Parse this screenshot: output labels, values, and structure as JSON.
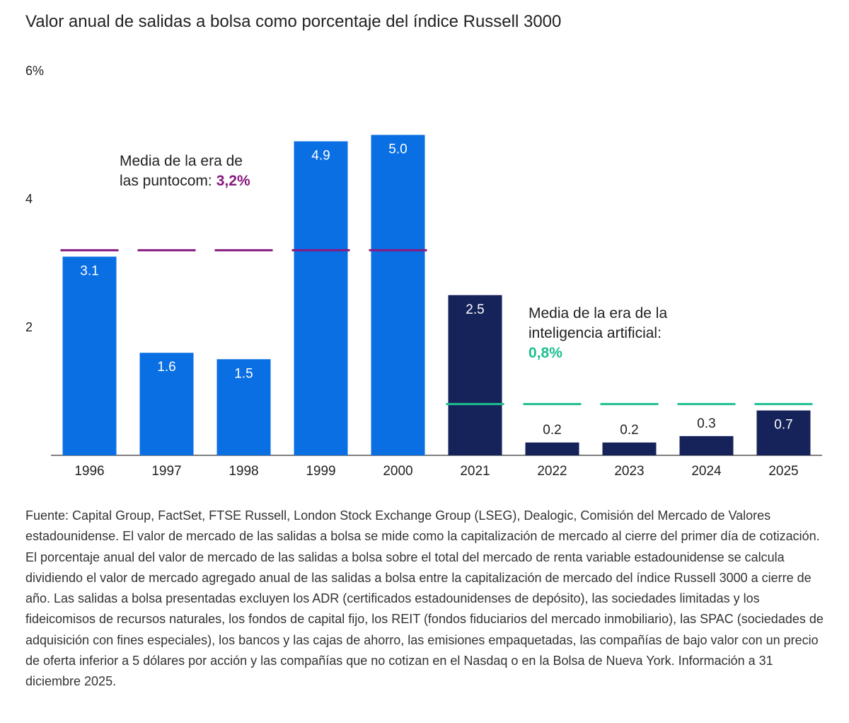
{
  "chart_data": {
    "type": "bar",
    "title": "Valor anual de salidas a bolsa como porcentaje del índice Russell 3000",
    "ylim": [
      0,
      6
    ],
    "yticks": [
      2,
      4,
      {
        "value": 6,
        "label": "6%"
      }
    ],
    "eras": [
      {
        "categories": [
          "1996",
          "1997",
          "1998",
          "1999",
          "2000"
        ],
        "values": [
          3.1,
          1.6,
          1.5,
          4.9,
          5.0
        ],
        "value_labels": [
          "3.1",
          "1.6",
          "1.5",
          "4.9",
          "5.0"
        ],
        "color": "#0a6fe3",
        "note": [
          "Media de la era de",
          "las puntocom:"
        ],
        "mean": 3.2,
        "mean_label": "3,2%",
        "mean_color": "#87197f"
      },
      {
        "categories": [
          "2021",
          "2022",
          "2023",
          "2024",
          "2025"
        ],
        "values": [
          2.5,
          0.2,
          0.2,
          0.3,
          0.7
        ],
        "value_labels": [
          "2.5",
          "0.2",
          "0.2",
          "0.3",
          "0.7"
        ],
        "color": "#16225a",
        "note": [
          "Media de la era de la",
          "inteligencia artificial:"
        ],
        "mean": 0.8,
        "mean_label": "0,8%",
        "mean_color": "#1dbf8f"
      }
    ],
    "footnote": "Fuente: Capital Group, FactSet, FTSE Russell, London Stock Exchange Group (LSEG), Dealogic, Comisión del Mercado de Valores estadounidense. El valor de mercado de las salidas a bolsa se mide como la capitalización de mercado al cierre del primer día de cotización. El porcentaje anual del valor de mercado de las salidas a bolsa sobre el total del mercado de renta variable estadounidense se calcula dividiendo el valor de mercado agregado anual de las salidas a bolsa entre la capitalización de mercado del índice Russell 3000 a cierre de año. Las salidas a bolsa presentadas excluyen los ADR (certificados estadounidenses de depósito), las sociedades limitadas y los fideicomisos de recursos naturales, los fondos de capital fijo, los REIT (fondos fiduciarios del mercado inmobiliario), las SPAC (sociedades de adquisición con fines especiales), los bancos y las cajas de ahorro, las emisiones empaquetadas, las compañías de bajo valor con un precio de oferta inferior a 5 dólares por acción y las compañías que no cotizan en el Nasdaq o en la Bolsa de Nueva York. Información a 31 diciembre 2025."
  }
}
